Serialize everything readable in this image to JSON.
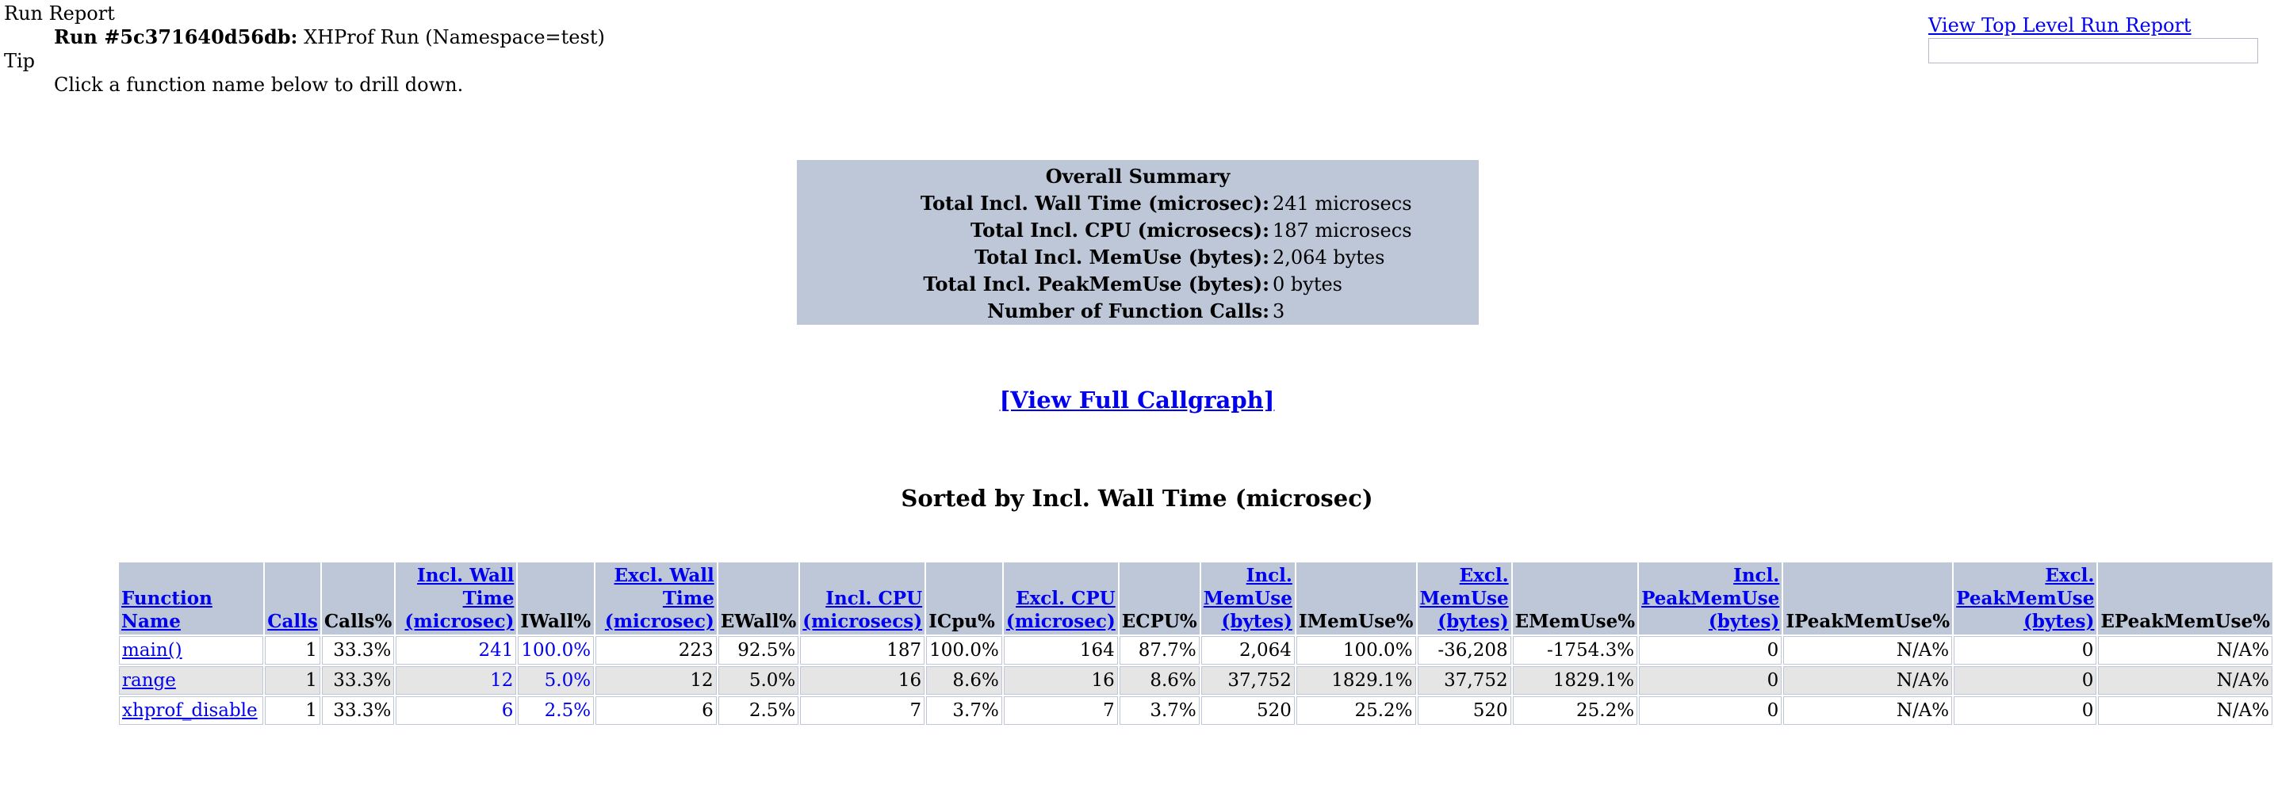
{
  "header": {
    "run_report_label": "Run Report",
    "run_label": "Run #5c371640d56db:",
    "run_desc": "XHProf Run (Namespace=test)",
    "tip_label": "Tip",
    "tip_text": "Click a function name below to drill down."
  },
  "top_link": "View Top Level Run Report",
  "summary": {
    "title": "Overall Summary",
    "rows": [
      {
        "label": "Total Incl. Wall Time (microsec):",
        "value": "241 microsecs"
      },
      {
        "label": "Total Incl. CPU (microsecs):",
        "value": "187 microsecs"
      },
      {
        "label": "Total Incl. MemUse (bytes):",
        "value": "2,064 bytes"
      },
      {
        "label": "Total Incl. PeakMemUse (bytes):",
        "value": "0 bytes"
      },
      {
        "label": "Number of Function Calls:",
        "value": "3"
      }
    ]
  },
  "callgraph_link": "[View Full Callgraph]",
  "sorted_title": "Sorted by Incl. Wall Time (microsec)",
  "table": {
    "headers": [
      {
        "lines": [
          "Function Name"
        ],
        "link": true,
        "align": "left"
      },
      {
        "lines": [
          "Calls"
        ],
        "link": true,
        "align": "left"
      },
      {
        "lines": [
          "Calls%"
        ],
        "link": false,
        "align": "left"
      },
      {
        "lines": [
          "Incl. Wall Time",
          "(microsec)"
        ],
        "link": true,
        "align": "right"
      },
      {
        "lines": [
          "IWall%"
        ],
        "link": false,
        "align": "left"
      },
      {
        "lines": [
          "Excl. Wall Time",
          "(microsec)"
        ],
        "link": true,
        "align": "right"
      },
      {
        "lines": [
          "EWall%"
        ],
        "link": false,
        "align": "left"
      },
      {
        "lines": [
          "Incl. CPU",
          "(microsecs)"
        ],
        "link": true,
        "align": "right"
      },
      {
        "lines": [
          "ICpu%"
        ],
        "link": false,
        "align": "left"
      },
      {
        "lines": [
          "Excl. CPU",
          "(microsec)"
        ],
        "link": true,
        "align": "right"
      },
      {
        "lines": [
          "ECPU%"
        ],
        "link": false,
        "align": "left"
      },
      {
        "lines": [
          "Incl.",
          "MemUse",
          "(bytes)"
        ],
        "link": true,
        "align": "right"
      },
      {
        "lines": [
          "IMemUse%"
        ],
        "link": false,
        "align": "left"
      },
      {
        "lines": [
          "Excl.",
          "MemUse",
          "(bytes)"
        ],
        "link": true,
        "align": "right"
      },
      {
        "lines": [
          "EMemUse%"
        ],
        "link": false,
        "align": "left"
      },
      {
        "lines": [
          "Incl.",
          "PeakMemUse",
          "(bytes)"
        ],
        "link": true,
        "align": "right"
      },
      {
        "lines": [
          "IPeakMemUse%"
        ],
        "link": false,
        "align": "left"
      },
      {
        "lines": [
          "Excl.",
          "PeakMemUse",
          "(bytes)"
        ],
        "link": true,
        "align": "right"
      },
      {
        "lines": [
          "EPeakMemUse%"
        ],
        "link": false,
        "align": "left"
      }
    ],
    "rows": [
      {
        "cells": [
          "main()",
          "1",
          "33.3%",
          "241",
          "100.0%",
          "223",
          "92.5%",
          "187",
          "100.0%",
          "164",
          "87.7%",
          "2,064",
          "100.0%",
          "-36,208",
          "-1754.3%",
          "0",
          "N/A%",
          "0",
          "N/A%"
        ]
      },
      {
        "cells": [
          "range",
          "1",
          "33.3%",
          "12",
          "5.0%",
          "12",
          "5.0%",
          "16",
          "8.6%",
          "16",
          "8.6%",
          "37,752",
          "1829.1%",
          "37,752",
          "1829.1%",
          "0",
          "N/A%",
          "0",
          "N/A%"
        ]
      },
      {
        "cells": [
          "xhprof_disable",
          "1",
          "33.3%",
          "6",
          "2.5%",
          "6",
          "2.5%",
          "7",
          "3.7%",
          "7",
          "3.7%",
          "520",
          "25.2%",
          "520",
          "25.2%",
          "0",
          "N/A%",
          "0",
          "N/A%"
        ]
      }
    ],
    "blue_value_columns": [
      3,
      4
    ]
  }
}
